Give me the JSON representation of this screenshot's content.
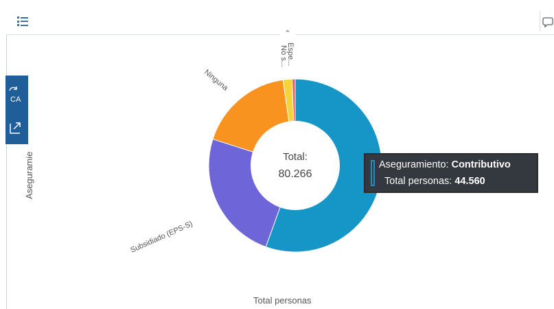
{
  "colors": {
    "accent": "#1f5e99",
    "contributivo": "#1696c6",
    "subsidiado": "#6e66d8",
    "ninguna": "#f7931e",
    "no_sabe": "#f5d33a",
    "especial": "#e05f69"
  },
  "toolbar": {
    "list_icon": "list-icon",
    "right_icon": "chat-icon"
  },
  "side_panel": [
    {
      "icon": "translate-icon"
    },
    {
      "icon": "export-icon"
    }
  ],
  "axes": {
    "y_label": "Aseguramie",
    "x_label": "Total personas"
  },
  "center": {
    "label": "Total:",
    "value": "80.266"
  },
  "tooltip": {
    "label1": "Aseguramiento:",
    "value1": "Contributivo",
    "label2": "Total personas:",
    "value2": "44.560"
  },
  "chart_data": {
    "type": "pie",
    "subtype": "donut",
    "total": 80266,
    "categories": [
      "Contributivo",
      "Subsidiado (EPS-S)",
      "Ninguna",
      "No s...",
      "Espe..."
    ],
    "values": [
      44560,
      19600,
      14300,
      1350,
      456
    ],
    "visible_labels": [
      "Subsidiado (EPS-S)",
      "Ninguna",
      "No s...",
      "Espe..."
    ]
  }
}
